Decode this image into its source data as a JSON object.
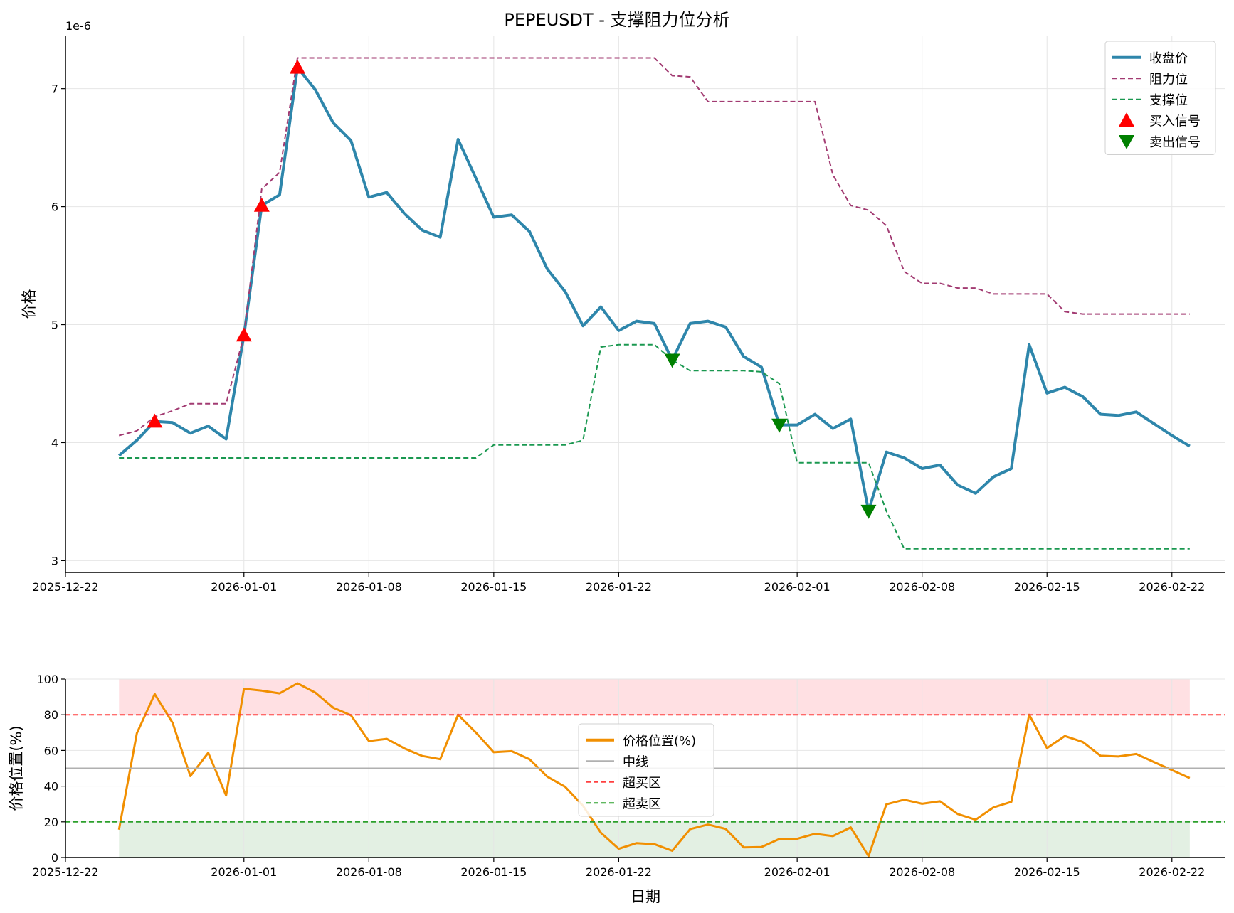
{
  "chart_data": [
    {
      "type": "line",
      "title": "PEPEUSDT - 支撑阻力位分析",
      "xlabel": "",
      "ylabel": "价格",
      "y_offset_text": "1e-6",
      "y_scale_factor": 1e-06,
      "ylim": [
        2.9,
        7.45
      ],
      "yticks": [
        3,
        4,
        5,
        6,
        7
      ],
      "x_start_date": "2025-12-25",
      "xlim_dates": [
        "2025-12-22",
        "2026-02-25"
      ],
      "xticks": [
        "2025-12-22",
        "2026-01-01",
        "2026-01-08",
        "2026-01-15",
        "2026-01-22",
        "2026-02-01",
        "2026-02-08",
        "2026-02-15",
        "2026-02-22"
      ],
      "grid": true,
      "legend_position": "top-right",
      "series": [
        {
          "name": "收盘价",
          "style": "solid",
          "color": "#2e86ab",
          "values": [
            3.89,
            4.02,
            4.18,
            4.17,
            4.08,
            4.14,
            4.03,
            4.91,
            6.01,
            6.1,
            7.18,
            6.99,
            6.71,
            6.56,
            6.08,
            6.12,
            5.94,
            5.8,
            5.74,
            6.57,
            6.24,
            5.91,
            5.93,
            5.79,
            5.47,
            5.28,
            4.99,
            5.15,
            4.95,
            5.03,
            5.01,
            4.7,
            5.01,
            5.03,
            4.98,
            4.73,
            4.64,
            4.15,
            4.15,
            4.24,
            4.12,
            4.2,
            3.42,
            3.92,
            3.87,
            3.78,
            3.81,
            3.64,
            3.57,
            3.71,
            3.78,
            4.83,
            4.42,
            4.47,
            4.39,
            4.24,
            4.23,
            4.26,
            4.16,
            4.06,
            3.97
          ]
        },
        {
          "name": "阻力位",
          "style": "dashed",
          "color": "#a23b72",
          "values": [
            4.06,
            4.1,
            4.22,
            4.27,
            4.33,
            4.33,
            4.33,
            4.91,
            6.15,
            6.29,
            7.26,
            7.26,
            7.26,
            7.26,
            7.26,
            7.26,
            7.26,
            7.26,
            7.26,
            7.26,
            7.26,
            7.26,
            7.26,
            7.26,
            7.26,
            7.26,
            7.26,
            7.26,
            7.26,
            7.26,
            7.26,
            7.11,
            7.1,
            6.89,
            6.89,
            6.89,
            6.89,
            6.89,
            6.89,
            6.89,
            6.27,
            6.01,
            5.97,
            5.84,
            5.45,
            5.35,
            5.35,
            5.31,
            5.31,
            5.26,
            5.26,
            5.26,
            5.26,
            5.11,
            5.09,
            5.09,
            5.09,
            5.09,
            5.09,
            5.09,
            5.09
          ]
        },
        {
          "name": "支撑位",
          "style": "dashed",
          "color": "#1a9850",
          "values": [
            3.87,
            3.87,
            3.87,
            3.87,
            3.87,
            3.87,
            3.87,
            3.87,
            3.87,
            3.87,
            3.87,
            3.87,
            3.87,
            3.87,
            3.87,
            3.87,
            3.87,
            3.87,
            3.87,
            3.87,
            3.87,
            3.98,
            3.98,
            3.98,
            3.98,
            3.98,
            4.02,
            4.81,
            4.83,
            4.83,
            4.83,
            4.7,
            4.61,
            4.61,
            4.61,
            4.61,
            4.6,
            4.5,
            3.83,
            3.83,
            3.83,
            3.83,
            3.83,
            3.42,
            3.1,
            3.1,
            3.1,
            3.1,
            3.1,
            3.1,
            3.1,
            3.1,
            3.1,
            3.1,
            3.1,
            3.1,
            3.1,
            3.1,
            3.1,
            3.1,
            3.1
          ]
        }
      ],
      "markers": [
        {
          "name": "买入信号",
          "shape": "triangle-up",
          "color": "#ff0000",
          "points": [
            {
              "x": "2025-12-27",
              "y": 4.18
            },
            {
              "x": "2026-01-01",
              "y": 4.91
            },
            {
              "x": "2026-01-02",
              "y": 6.01
            },
            {
              "x": "2026-01-04",
              "y": 7.18
            }
          ]
        },
        {
          "name": "卖出信号",
          "shape": "triangle-down",
          "color": "#008000",
          "points": [
            {
              "x": "2026-01-25",
              "y": 4.7
            },
            {
              "x": "2026-01-31",
              "y": 4.15
            },
            {
              "x": "2026-02-05",
              "y": 3.42
            }
          ]
        }
      ]
    },
    {
      "type": "line",
      "title": "",
      "xlabel": "日期",
      "ylabel": "价格位置(%)",
      "ylim": [
        0,
        100
      ],
      "yticks": [
        0,
        20,
        40,
        60,
        80,
        100
      ],
      "x_start_date": "2025-12-25",
      "xlim_dates": [
        "2025-12-22",
        "2026-02-25"
      ],
      "xticks": [
        "2025-12-22",
        "2026-01-01",
        "2026-01-08",
        "2026-01-15",
        "2026-01-22",
        "2026-02-01",
        "2026-02-08",
        "2026-02-15",
        "2026-02-22"
      ],
      "grid": true,
      "legend_position": "center",
      "series": [
        {
          "name": "价格位置(%)",
          "style": "solid",
          "color": "#f18f01",
          "values": [
            15.6,
            69.6,
            91.6,
            75.5,
            45.6,
            58.7,
            34.8,
            94.6,
            93.5,
            92.0,
            97.6,
            92.4,
            84.0,
            79.7,
            65.3,
            66.5,
            61.1,
            56.9,
            55.1,
            80.0,
            70.0,
            59.0,
            59.6,
            55.1,
            45.3,
            39.6,
            29.0,
            13.9,
            4.9,
            8.1,
            7.5,
            3.8,
            15.9,
            18.5,
            16.0,
            5.7,
            5.9,
            10.4,
            10.5,
            13.3,
            12.0,
            16.9,
            0.8,
            29.8,
            32.4,
            30.1,
            31.5,
            24.4,
            21.2,
            28.1,
            31.2,
            80.0,
            61.3,
            68.1,
            64.8,
            57.0,
            56.6,
            58.0,
            53.5,
            49.0,
            44.5
          ]
        },
        {
          "name": "中线",
          "style": "solid",
          "color": "#b0b0b0",
          "constant": 50
        },
        {
          "name": "超买区",
          "style": "dashed",
          "color": "#ff4040",
          "constant": 80
        },
        {
          "name": "超卖区",
          "style": "dashed",
          "color": "#2ca02c",
          "constant": 20
        }
      ],
      "shaded_regions": [
        {
          "from": 80,
          "to": 100,
          "color": "#ffe0e3"
        },
        {
          "from": 0,
          "to": 20,
          "color": "#e3f0e3"
        }
      ]
    }
  ]
}
